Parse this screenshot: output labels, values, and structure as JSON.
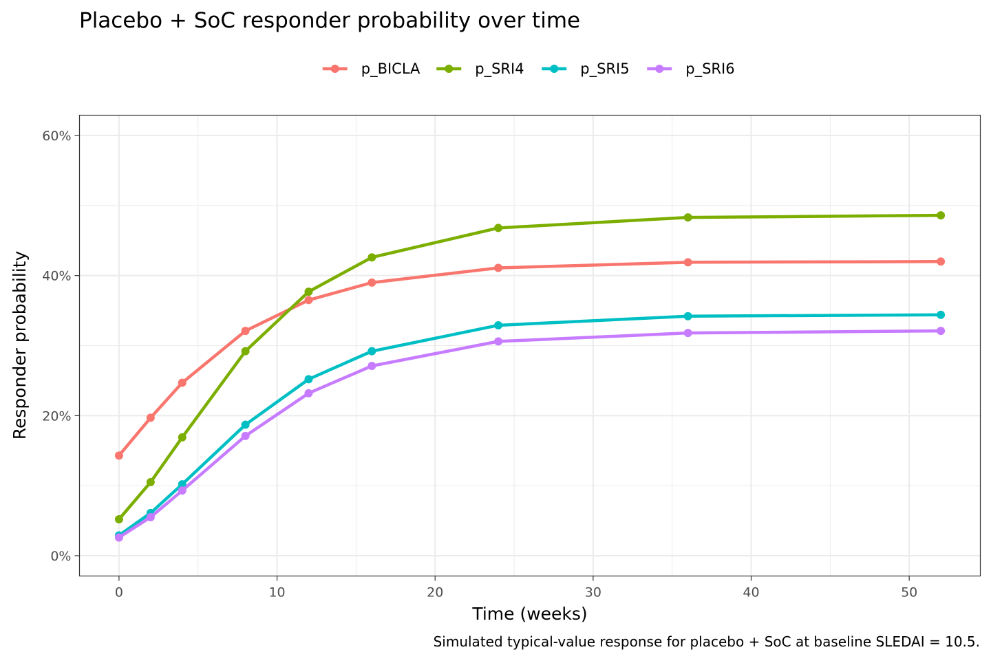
{
  "chart_data": {
    "type": "line",
    "title": "Placebo + SoC responder probability over time",
    "xlabel": "Time (weeks)",
    "ylabel": "Responder probability",
    "caption": "Simulated typical-value response for placebo + SoC at baseline SLEDAI = 10.5.",
    "x": [
      0,
      2,
      4,
      8,
      12,
      16,
      24,
      36,
      52
    ],
    "xlim": [
      -2.5,
      54.5
    ],
    "ylim": [
      -0.029,
      0.629
    ],
    "x_ticks": [
      0,
      10,
      20,
      30,
      40,
      50
    ],
    "x_tick_labels": [
      "0",
      "10",
      "20",
      "30",
      "40",
      "50"
    ],
    "y_ticks": [
      0,
      0.2,
      0.4,
      0.6
    ],
    "y_tick_labels": [
      "0%",
      "20%",
      "40%",
      "60%"
    ],
    "grid": true,
    "legend_position": "top",
    "series": [
      {
        "name": "p_BICLA",
        "color": "#F8766D",
        "values": [
          0.143,
          0.197,
          0.247,
          0.321,
          0.365,
          0.39,
          0.411,
          0.419,
          0.42
        ]
      },
      {
        "name": "p_SRI4",
        "color": "#7CAE00",
        "values": [
          0.052,
          0.105,
          0.169,
          0.292,
          0.377,
          0.426,
          0.468,
          0.483,
          0.486
        ]
      },
      {
        "name": "p_SRI5",
        "color": "#00BFC4",
        "values": [
          0.029,
          0.061,
          0.102,
          0.187,
          0.252,
          0.292,
          0.329,
          0.342,
          0.344
        ]
      },
      {
        "name": "p_SRI6",
        "color": "#C77CFF",
        "values": [
          0.026,
          0.055,
          0.093,
          0.171,
          0.232,
          0.271,
          0.306,
          0.318,
          0.321
        ]
      }
    ]
  }
}
